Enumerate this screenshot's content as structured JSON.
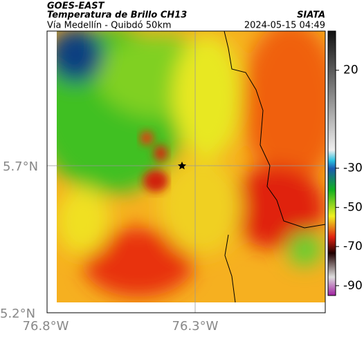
{
  "header": {
    "title": "GOES-EAST",
    "subtitle": "Temperatura de Brillo CH13",
    "location": "Vía Medellín - Quibdó 50km",
    "source": "SIATA",
    "timestamp": "2024-05-15 04:49"
  },
  "map": {
    "x_labels": [
      "76.8°W",
      "76.3°W"
    ],
    "y_labels": [
      "5.7°N",
      "5.2°N"
    ]
  },
  "colorbar": {
    "lim": [
      40,
      -95
    ],
    "ticks": [
      20,
      -30,
      -50,
      -70,
      -90
    ]
  }
}
